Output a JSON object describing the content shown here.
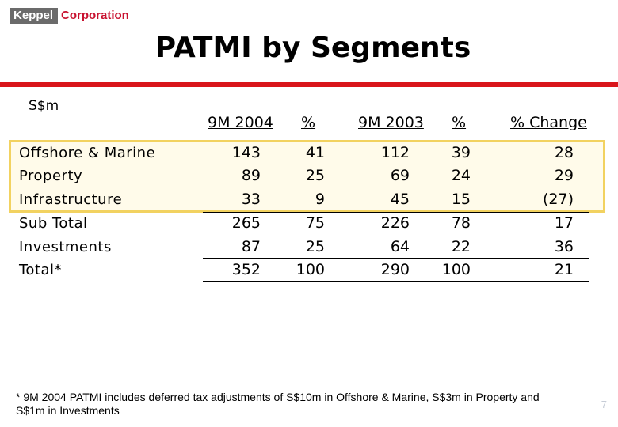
{
  "logo": {
    "keppel": "Keppel",
    "corporation": "Corporation"
  },
  "title": "PATMI by Segments",
  "currency": "S$m",
  "headers": [
    "9M 2004",
    "%",
    "9M 2003",
    "%",
    "% Change"
  ],
  "rows": [
    {
      "label": "Offshore & Marine",
      "values": [
        "143",
        "41",
        "112",
        "39",
        "28"
      ]
    },
    {
      "label": "Property",
      "values": [
        "89",
        "25",
        "69",
        "24",
        "29"
      ]
    },
    {
      "label": "Infrastructure",
      "values": [
        "33",
        "9",
        "45",
        "15",
        "(27)"
      ]
    },
    {
      "label": "Sub Total",
      "values": [
        "265",
        "75",
        "226",
        "78",
        "17"
      ]
    },
    {
      "label": "Investments",
      "values": [
        "87",
        "25",
        "64",
        "22",
        "36"
      ]
    },
    {
      "label": "Total*",
      "values": [
        "352",
        "100",
        "290",
        "100",
        "21"
      ]
    }
  ],
  "footnote": "* 9M 2004 PATMI includes deferred tax adjustments of S$10m in Offshore & Marine, S$3m in Property and S$1m in Investments",
  "page_number": "7"
}
